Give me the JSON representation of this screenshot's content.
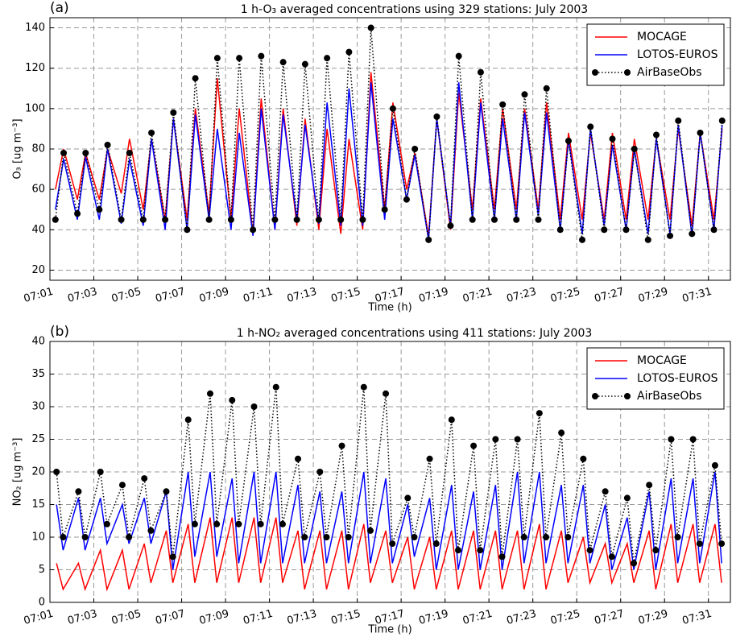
{
  "chart_data": [
    {
      "type": "line",
      "panel_label": "(a)",
      "title": "1 h-O₃ averaged concentrations using 329 stations: July 2003",
      "x_label": "Time (h)",
      "y_label": "O₃ [ug m⁻³]",
      "x": [
        1.25,
        1.625,
        2.25,
        2.625,
        3.25,
        3.625,
        4.25,
        4.625,
        5.25,
        5.625,
        6.25,
        6.625,
        7.25,
        7.625,
        8.25,
        8.625,
        9.25,
        9.625,
        10.25,
        10.625,
        11.25,
        11.625,
        12.25,
        12.625,
        13.25,
        13.625,
        14.25,
        14.625,
        15.25,
        15.625,
        16.25,
        16.625,
        17.25,
        17.625,
        18.25,
        18.625,
        19.25,
        19.625,
        20.25,
        20.625,
        21.25,
        21.625,
        22.25,
        22.625,
        23.25,
        23.625,
        24.25,
        24.625,
        25.25,
        25.625,
        26.25,
        26.625,
        27.25,
        27.625,
        28.25,
        28.625,
        29.25,
        29.625,
        30.25,
        30.625,
        31.25,
        31.625
      ],
      "series": [
        {
          "name": "MOCAGE",
          "color": "#ff0000",
          "linestyle": "solid",
          "marker": "none",
          "values": [
            60,
            80,
            55,
            78,
            55,
            80,
            58,
            85,
            50,
            85,
            45,
            95,
            45,
            100,
            48,
            115,
            45,
            100,
            38,
            105,
            40,
            100,
            42,
            95,
            40,
            90,
            38,
            85,
            40,
            118,
            50,
            103,
            60,
            78,
            37,
            95,
            40,
            108,
            50,
            105,
            50,
            100,
            50,
            100,
            50,
            103,
            45,
            88,
            45,
            88,
            45,
            88,
            45,
            85,
            45,
            85,
            45,
            90,
            42,
            88,
            45,
            90
          ]
        },
        {
          "name": "LOTOS-EUROS",
          "color": "#0000ff",
          "linestyle": "solid",
          "marker": "none",
          "values": [
            50,
            75,
            45,
            76,
            45,
            80,
            43,
            75,
            42,
            85,
            40,
            95,
            40,
            97,
            45,
            90,
            40,
            88,
            37,
            100,
            40,
            97,
            45,
            92,
            43,
            103,
            42,
            110,
            42,
            113,
            45,
            95,
            55,
            77,
            35,
            95,
            42,
            113,
            45,
            103,
            45,
            95,
            45,
            98,
            47,
            98,
            40,
            85,
            38,
            90,
            42,
            82,
            40,
            80,
            38,
            85,
            38,
            92,
            37,
            88,
            40,
            92
          ]
        },
        {
          "name": "AirBaseObs",
          "color": "#000000",
          "linestyle": "dotted",
          "marker": "circle",
          "values": [
            45,
            78,
            48,
            78,
            50,
            82,
            45,
            78,
            45,
            88,
            45,
            98,
            40,
            115,
            45,
            125,
            45,
            125,
            40,
            126,
            45,
            123,
            45,
            122,
            45,
            125,
            45,
            128,
            45,
            140,
            50,
            100,
            55,
            80,
            35,
            96,
            42,
            126,
            45,
            118,
            45,
            102,
            45,
            107,
            45,
            110,
            40,
            84,
            35,
            91,
            40,
            85,
            40,
            80,
            35,
            87,
            37,
            94,
            38,
            88,
            40,
            94
          ]
        }
      ],
      "xlim": [
        1,
        32
      ],
      "xticks": [
        {
          "value": 1,
          "label": "07:01"
        },
        {
          "value": 3,
          "label": "07:03"
        },
        {
          "value": 5,
          "label": "07:05"
        },
        {
          "value": 7,
          "label": "07:07"
        },
        {
          "value": 9,
          "label": "07:09"
        },
        {
          "value": 11,
          "label": "07:11"
        },
        {
          "value": 13,
          "label": "07:13"
        },
        {
          "value": 15,
          "label": "07:15"
        },
        {
          "value": 17,
          "label": "07:17"
        },
        {
          "value": 19,
          "label": "07:19"
        },
        {
          "value": 21,
          "label": "07:21"
        },
        {
          "value": 23,
          "label": "07:23"
        },
        {
          "value": 25,
          "label": "07:25"
        },
        {
          "value": 27,
          "label": "07:27"
        },
        {
          "value": 29,
          "label": "07:29"
        },
        {
          "value": 31,
          "label": "07:31"
        }
      ],
      "ylim": [
        15,
        145
      ],
      "yticks": [
        20,
        40,
        60,
        80,
        100,
        120,
        140
      ],
      "grid": true,
      "legend": "upper right"
    },
    {
      "type": "line",
      "panel_label": "(b)",
      "title": "1 h-NO₂ averaged concentrations using 411 stations: July 2003",
      "x_label": "Time (h)",
      "y_label": "NO₂ [ug m⁻³]",
      "x": [
        1.3,
        1.6,
        2.3,
        2.6,
        3.3,
        3.6,
        4.3,
        4.6,
        5.3,
        5.6,
        6.3,
        6.6,
        7.3,
        7.6,
        8.3,
        8.6,
        9.3,
        9.6,
        10.3,
        10.6,
        11.3,
        11.6,
        12.3,
        12.6,
        13.3,
        13.6,
        14.3,
        14.6,
        15.3,
        15.6,
        16.3,
        16.6,
        17.3,
        17.6,
        18.3,
        18.6,
        19.3,
        19.6,
        20.3,
        20.6,
        21.3,
        21.6,
        22.3,
        22.6,
        23.3,
        23.6,
        24.3,
        24.6,
        25.3,
        25.6,
        26.3,
        26.6,
        27.3,
        27.6,
        28.3,
        28.6,
        29.3,
        29.6,
        30.3,
        30.6,
        31.3,
        31.6
      ],
      "series": [
        {
          "name": "MOCAGE",
          "color": "#ff0000",
          "linestyle": "solid",
          "marker": "none",
          "values": [
            6,
            2,
            6,
            2,
            8,
            2,
            8,
            2,
            9,
            3,
            11,
            3,
            12,
            3,
            13,
            3,
            13,
            3,
            13,
            3,
            13,
            3,
            11,
            2,
            11,
            2,
            11,
            2,
            12,
            3,
            11,
            3,
            10,
            2,
            10,
            2,
            11,
            2,
            11,
            2,
            11,
            2,
            11,
            2,
            12,
            2,
            11,
            3,
            10,
            3,
            9,
            3,
            9,
            3,
            11,
            2,
            12,
            3,
            12,
            3,
            12,
            3
          ]
        },
        {
          "name": "LOTOS-EUROS",
          "color": "#0000ff",
          "linestyle": "solid",
          "marker": "none",
          "values": [
            15,
            8,
            16,
            8,
            16,
            9,
            15,
            9,
            16,
            9,
            17,
            5,
            20,
            7,
            20,
            7,
            19,
            6,
            20,
            6,
            20,
            6,
            18,
            6,
            17,
            6,
            17,
            6,
            20,
            6,
            19,
            6,
            15,
            7,
            16,
            5,
            18,
            5,
            17,
            5,
            18,
            5,
            20,
            6,
            20,
            6,
            18,
            6,
            18,
            6,
            15,
            5,
            13,
            5,
            17,
            5,
            19,
            6,
            19,
            6,
            20,
            6
          ]
        },
        {
          "name": "AirBaseObs",
          "color": "#000000",
          "linestyle": "dotted",
          "marker": "circle",
          "values": [
            20,
            10,
            17,
            10,
            20,
            12,
            18,
            10,
            19,
            11,
            17,
            7,
            28,
            12,
            32,
            12,
            31,
            12,
            30,
            12,
            33,
            12,
            22,
            10,
            20,
            10,
            24,
            10,
            33,
            11,
            32,
            9,
            16,
            10,
            22,
            9,
            28,
            8,
            24,
            8,
            25,
            7,
            25,
            10,
            29,
            10,
            26,
            10,
            22,
            8,
            17,
            7,
            16,
            6,
            18,
            8,
            25,
            10,
            25,
            9,
            21,
            9
          ]
        }
      ],
      "xlim": [
        1,
        32
      ],
      "xticks": [
        {
          "value": 1,
          "label": "07:01"
        },
        {
          "value": 3,
          "label": "07:03"
        },
        {
          "value": 5,
          "label": "07:05"
        },
        {
          "value": 7,
          "label": "07:07"
        },
        {
          "value": 9,
          "label": "07:09"
        },
        {
          "value": 11,
          "label": "07:11"
        },
        {
          "value": 13,
          "label": "07:13"
        },
        {
          "value": 15,
          "label": "07:15"
        },
        {
          "value": 17,
          "label": "07:17"
        },
        {
          "value": 19,
          "label": "07:19"
        },
        {
          "value": 21,
          "label": "07:21"
        },
        {
          "value": 23,
          "label": "07:23"
        },
        {
          "value": 25,
          "label": "07:25"
        },
        {
          "value": 27,
          "label": "07:27"
        },
        {
          "value": 29,
          "label": "07:29"
        },
        {
          "value": 31,
          "label": "07:31"
        }
      ],
      "ylim": [
        0,
        40
      ],
      "yticks": [
        0,
        5,
        10,
        15,
        20,
        25,
        30,
        35,
        40
      ],
      "grid": true,
      "legend": "upper right"
    }
  ]
}
